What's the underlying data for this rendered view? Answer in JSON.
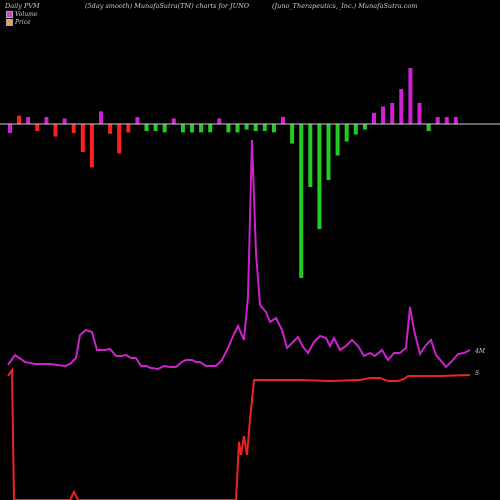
{
  "header": {
    "left": "Daily PVM",
    "middle": "(5day smooth) MunafaSutra(TM) charts for JUNO",
    "right": "(Juno_Therapeutics,_Inc.) MunafaSutra.com"
  },
  "legend": [
    {
      "label": "Volume",
      "color": "#cc44cc"
    },
    {
      "label": "Price",
      "color": "#e8a060"
    }
  ],
  "chart_data": {
    "type": "bar",
    "grid": false,
    "legend_position": "top-left",
    "volume_label": "4M",
    "price_label": "S",
    "series": [
      {
        "name": "Volume",
        "values": [
          [
            1,
            -0.13,
            "#d020d0"
          ],
          [
            2,
            0.12,
            "#ff2020"
          ],
          [
            3,
            0.1,
            "#d020d0"
          ],
          [
            4,
            -0.1,
            "#ff2020"
          ],
          [
            5,
            0.1,
            "#d020d0"
          ],
          [
            6,
            -0.18,
            "#ff2020"
          ],
          [
            7,
            0.08,
            "#d020d0"
          ],
          [
            8,
            -0.13,
            "#ff2020"
          ],
          [
            9,
            -0.4,
            "#ff2020"
          ],
          [
            10,
            -0.62,
            "#ff2020"
          ],
          [
            11,
            0.18,
            "#d020d0"
          ],
          [
            12,
            -0.14,
            "#ff2020"
          ],
          [
            13,
            -0.42,
            "#ff2020"
          ],
          [
            14,
            -0.12,
            "#ff2020"
          ],
          [
            15,
            0.1,
            "#d020d0"
          ],
          [
            16,
            -0.1,
            "#22cc22"
          ],
          [
            17,
            -0.1,
            "#22cc22"
          ],
          [
            18,
            -0.12,
            "#22cc22"
          ],
          [
            19,
            0.08,
            "#d020d0"
          ],
          [
            20,
            -0.12,
            "#22cc22"
          ],
          [
            21,
            -0.12,
            "#22cc22"
          ],
          [
            22,
            -0.12,
            "#22cc22"
          ],
          [
            23,
            -0.12,
            "#22cc22"
          ],
          [
            24,
            0.08,
            "#d020d0"
          ],
          [
            25,
            -0.12,
            "#22cc22"
          ],
          [
            26,
            -0.12,
            "#22cc22"
          ],
          [
            27,
            -0.08,
            "#22cc22"
          ],
          [
            28,
            -0.1,
            "#22cc22"
          ],
          [
            29,
            -0.1,
            "#22cc22"
          ],
          [
            30,
            -0.12,
            "#22cc22"
          ],
          [
            31,
            0.1,
            "#d020d0"
          ],
          [
            32,
            -0.28,
            "#22cc22"
          ],
          [
            33,
            -2.2,
            "#22cc22"
          ],
          [
            34,
            -0.9,
            "#22cc22"
          ],
          [
            35,
            -1.5,
            "#22cc22"
          ],
          [
            36,
            -0.8,
            "#22cc22"
          ],
          [
            37,
            -0.45,
            "#22cc22"
          ],
          [
            38,
            -0.25,
            "#22cc22"
          ],
          [
            39,
            -0.15,
            "#22cc22"
          ],
          [
            40,
            -0.08,
            "#22cc22"
          ],
          [
            41,
            0.16,
            "#d020d0"
          ],
          [
            42,
            0.25,
            "#d020d0"
          ],
          [
            43,
            0.3,
            "#d020d0"
          ],
          [
            44,
            0.5,
            "#d020d0"
          ],
          [
            45,
            0.8,
            "#d020d0"
          ],
          [
            46,
            0.3,
            "#d020d0"
          ],
          [
            47,
            -0.1,
            "#22cc22"
          ],
          [
            48,
            0.1,
            "#d020d0"
          ],
          [
            49,
            0.1,
            "#d020d0"
          ],
          [
            50,
            0.1,
            "#d020d0"
          ]
        ]
      },
      {
        "name": "Price",
        "values": []
      }
    ]
  }
}
